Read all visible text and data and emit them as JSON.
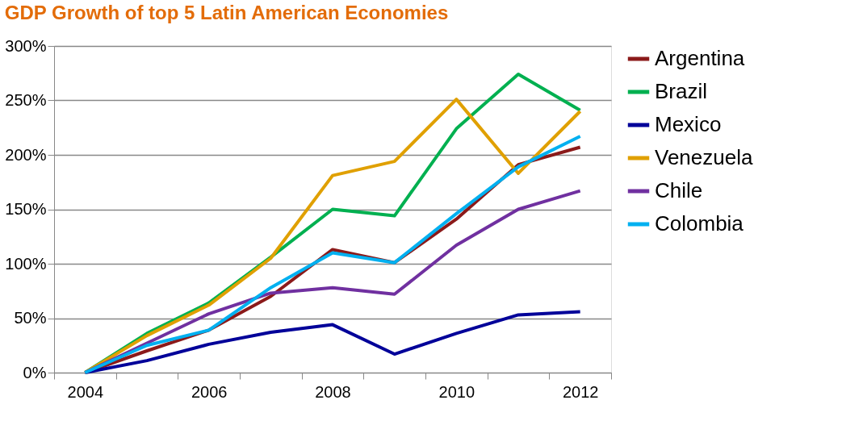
{
  "chart_data": {
    "type": "line",
    "title": "GDP Growth of top 5 Latin American Economies",
    "categories": [
      "2004",
      null,
      "2006",
      null,
      "2008",
      null,
      "2010",
      null,
      "2012"
    ],
    "ylim": [
      0,
      300
    ],
    "yticks": [
      {
        "value": 0,
        "label": "0%"
      },
      {
        "value": 50,
        "label": "50%"
      },
      {
        "value": 100,
        "label": "100%"
      },
      {
        "value": 150,
        "label": "150%"
      },
      {
        "value": 200,
        "label": "200%"
      },
      {
        "value": 250,
        "label": "250%"
      },
      {
        "value": 300,
        "label": "300%"
      }
    ],
    "grid": "y",
    "legend": "right",
    "marker": "none",
    "line_style": "solid",
    "series": [
      {
        "name": "Argentina",
        "color": "#8b1a1a",
        "values": [
          0,
          20,
          39,
          70,
          113,
          101,
          141,
          191,
          207
        ]
      },
      {
        "name": "Brazil",
        "color": "#00b050",
        "values": [
          0,
          36,
          64,
          106,
          150,
          144,
          224,
          274,
          241
        ]
      },
      {
        "name": "Mexico",
        "color": "#000099",
        "values": [
          0,
          11,
          26,
          37,
          44,
          17,
          36,
          53,
          56
        ]
      },
      {
        "name": "Venezuela",
        "color": "#e0a000",
        "values": [
          0,
          34,
          62,
          105,
          181,
          194,
          251,
          183,
          240
        ]
      },
      {
        "name": "Chile",
        "color": "#7030a0",
        "values": [
          0,
          27,
          54,
          73,
          78,
          72,
          117,
          150,
          167
        ]
      },
      {
        "name": "Colombia",
        "color": "#00b0f0",
        "values": [
          0,
          25,
          39,
          78,
          110,
          101,
          146,
          189,
          217
        ]
      }
    ]
  }
}
